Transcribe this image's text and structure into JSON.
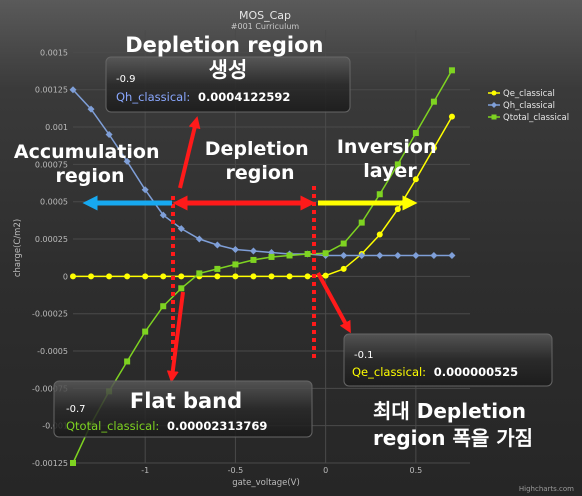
{
  "chart_data": {
    "type": "line",
    "title": "MOS_Cap",
    "subtitle": "#001 Curriculum",
    "xlabel": "gate_voltage(V)",
    "ylabel": "charge(C/m2)",
    "xlim": [
      -1.4,
      0.8
    ],
    "ylim": [
      -0.00125,
      0.00165
    ],
    "x_ticks": [
      -1,
      -0.5,
      0,
      0.5
    ],
    "x_tick_labels": [
      "-1",
      "-0.5",
      "0",
      "0.5"
    ],
    "y_ticks": [
      0.0015,
      0.00125,
      0.001,
      0.00075,
      0.0005,
      0.00025,
      0,
      -0.00025,
      -0.0005,
      -0.00075,
      -0.001,
      -0.00125
    ],
    "y_tick_labels": [
      "0.0015",
      "0.00125",
      "0.001",
      "0.00075",
      "0.0005",
      "0.00025",
      "0",
      "-0.00025",
      "-0.0005",
      "-0.00075",
      "-0.001",
      "-0.00125"
    ],
    "grid": true,
    "legend_position": "top-right",
    "series": [
      {
        "name": "Qe_classical",
        "color": "#ffff00",
        "marker": "circle",
        "x": [
          -1.4,
          -1.3,
          -1.2,
          -1.1,
          -1.0,
          -0.9,
          -0.8,
          -0.7,
          -0.6,
          -0.5,
          -0.4,
          -0.3,
          -0.2,
          -0.1,
          0.0,
          0.1,
          0.2,
          0.3,
          0.4,
          0.5,
          0.6,
          0.7
        ],
        "y": [
          0,
          0,
          0,
          0,
          0,
          0,
          0,
          0,
          0,
          0,
          0,
          0,
          0,
          0,
          5e-06,
          5e-05,
          0.00015,
          0.00028,
          0.00045,
          0.00065,
          0.00086,
          0.00107
        ]
      },
      {
        "name": "Qh_classical",
        "color": "#7f9fd8",
        "marker": "diamond",
        "x": [
          -1.4,
          -1.3,
          -1.2,
          -1.1,
          -1.0,
          -0.9,
          -0.8,
          -0.7,
          -0.6,
          -0.5,
          -0.4,
          -0.3,
          -0.2,
          -0.1,
          0.0,
          0.1,
          0.2,
          0.3,
          0.4,
          0.5,
          0.6,
          0.7
        ],
        "y": [
          0.00125,
          0.00112,
          0.00095,
          0.00077,
          0.00058,
          0.00041,
          0.00032,
          0.00025,
          0.00021,
          0.00018,
          0.00017,
          0.00016,
          0.00015,
          0.00015,
          0.00014,
          0.00014,
          0.00014,
          0.00014,
          0.00014,
          0.00014,
          0.00014,
          0.00014
        ]
      },
      {
        "name": "Qtotal_classical",
        "color": "#7ed321",
        "marker": "square",
        "x": [
          -1.4,
          -1.3,
          -1.2,
          -1.1,
          -1.0,
          -0.9,
          -0.8,
          -0.7,
          -0.6,
          -0.5,
          -0.4,
          -0.3,
          -0.2,
          -0.1,
          0.0,
          0.1,
          0.2,
          0.3,
          0.4,
          0.5,
          0.6,
          0.7
        ],
        "y": [
          -0.00125,
          -0.00099,
          -0.00077,
          -0.00057,
          -0.00037,
          -0.0002,
          -8e-05,
          2e-05,
          5e-05,
          8e-05,
          0.00011,
          0.00013,
          0.00014,
          0.00015,
          0.000155,
          0.00022,
          0.00036,
          0.00055,
          0.00075,
          0.00096,
          0.00117,
          0.00138
        ]
      }
    ],
    "annotations": {
      "depletion_formation": [
        "Depletion region",
        "생성"
      ],
      "accumulation": [
        "Accumulation",
        "region"
      ],
      "depletion": [
        "Depletion",
        "region"
      ],
      "inversion": [
        "Inversion",
        "layer"
      ],
      "flat_band": [
        "Flat band"
      ],
      "max_depletion": [
        "최대 Depletion",
        "region 폭을 가짐"
      ]
    },
    "tooltips": {
      "qh": {
        "x_label": "-0.9",
        "series": "Qh_classical:",
        "value": "0.0004122592",
        "color": "#8aa8ff"
      },
      "qtotal": {
        "x_label": "-0.7",
        "series": "Qtotal_classical:",
        "value": "0.00002313769",
        "color": "#7ed321"
      },
      "qe": {
        "x_label": "-0.1",
        "series": "Qe_classical:",
        "value": "0.000000525",
        "color": "#ffff00"
      }
    },
    "credits": "Highcharts.com",
    "colors": {
      "red_arrow": "#ff1a1a",
      "blue_arrow": "#17a9f0",
      "yellow_arrow": "#ffff00"
    }
  }
}
